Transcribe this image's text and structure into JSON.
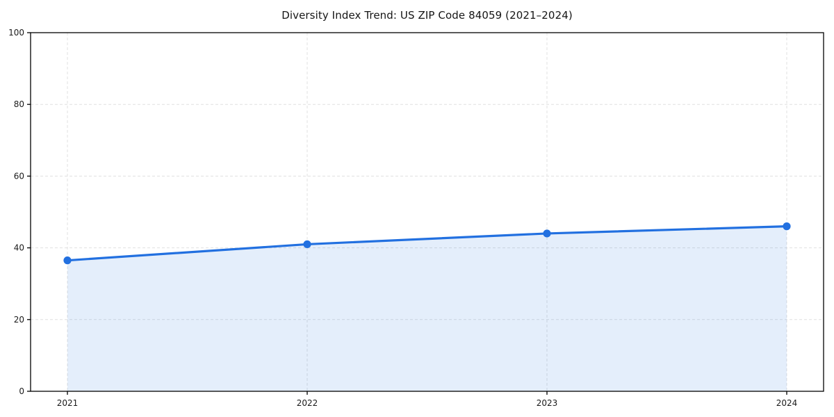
{
  "chart_data": {
    "type": "area",
    "title": "Diversity Index Trend: US ZIP Code 84059 (2021–2024)",
    "categories": [
      "2021",
      "2022",
      "2023",
      "2024"
    ],
    "series": [
      {
        "name": "Diversity Index",
        "values": [
          36.5,
          41,
          44,
          46
        ]
      }
    ],
    "xlabel": "",
    "ylabel": "",
    "ylim": [
      0,
      100
    ],
    "y_ticks": [
      0,
      20,
      40,
      60,
      80,
      100
    ],
    "grid": "dashed-both-axes",
    "legend_position": "none",
    "marker": "circle",
    "colors": {
      "line": "#2270e0",
      "marker": "#2270e0",
      "fill": "rgba(34,112,224,0.12)",
      "grid": "#e0e0e0",
      "spine": "#000000",
      "tick_label": "#1a1a1a",
      "title": "#151515",
      "background": "#ffffff"
    }
  }
}
